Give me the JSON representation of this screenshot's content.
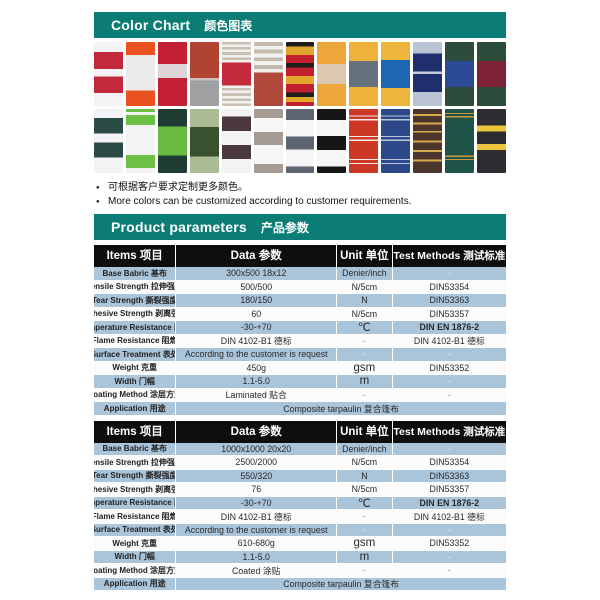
{
  "colors": {
    "accent_teal": "#0b7d75",
    "table_header_bg": "#0e0e0e",
    "row_alt_blue": "#aac4da",
    "row_plain": "#fbfbfb"
  },
  "banners": {
    "color_chart": {
      "en": "Color Chart",
      "zh": "颜色图表"
    },
    "product_parameters": {
      "en": "Product parameters",
      "zh": "产品参数"
    }
  },
  "notes": [
    "可根据客户要求定制更多颜色。",
    "More colors can be customized according to customer requirements."
  ],
  "swatches": {
    "rows": [
      [
        [
          [
            "#f3f3f5",
            16
          ],
          [
            "#c22a3b",
            26
          ],
          [
            "#f3f3f5",
            12
          ],
          [
            "#c22a3b",
            26
          ],
          [
            "#f3f3f5",
            20
          ]
        ],
        [
          [
            "#e9531f",
            20
          ],
          [
            "#ebebed",
            56
          ],
          [
            "#e9531f",
            24
          ]
        ],
        [
          [
            "#c22133",
            34
          ],
          [
            "#dcd4d7",
            22
          ],
          [
            "#c22133",
            44
          ]
        ],
        [
          [
            "#b04430",
            56
          ],
          [
            "#cfc0c0",
            4
          ],
          [
            "#9fa0a2",
            40
          ]
        ],
        [
          [
            "#c9c0b4",
            4
          ],
          [
            "#f2f1ee",
            4
          ],
          [
            "#c9c0b4",
            4
          ],
          [
            "#f2f1ee",
            4
          ],
          [
            "#c9c0b4",
            4
          ],
          [
            "#f2f1ee",
            4
          ],
          [
            "#c9c0b4",
            4
          ],
          [
            "#f2f1ee",
            4
          ],
          [
            "#c52b3d",
            36
          ],
          [
            "#f2f1ee",
            4
          ],
          [
            "#c9c0b4",
            4
          ],
          [
            "#f2f1ee",
            4
          ],
          [
            "#c9c0b4",
            4
          ],
          [
            "#f2f1ee",
            4
          ],
          [
            "#c9c0b4",
            4
          ],
          [
            "#f2f1ee",
            4
          ],
          [
            "#c9c0b4",
            4
          ]
        ],
        [
          [
            "#c4bab0",
            6
          ],
          [
            "#f2f1ee",
            6
          ],
          [
            "#c4bab0",
            6
          ],
          [
            "#f2f1ee",
            6
          ],
          [
            "#c4bab0",
            6
          ],
          [
            "#f2f1ee",
            6
          ],
          [
            "#c4bab0",
            6
          ],
          [
            "#f2f1ee",
            6
          ],
          [
            "#b1483c",
            52
          ]
        ],
        [
          [
            "#1d1d1d",
            7
          ],
          [
            "#e2a62c",
            13
          ],
          [
            "#c2202e",
            13
          ],
          [
            "#1d1d1d",
            7
          ],
          [
            "#c2202e",
            13
          ],
          [
            "#e2a62c",
            13
          ],
          [
            "#c2202e",
            13
          ],
          [
            "#1d1d1d",
            7
          ],
          [
            "#e2a62c",
            8
          ],
          [
            "#c2202e",
            6
          ]
        ],
        [
          [
            "#eda63c",
            34
          ],
          [
            "#dcc8b0",
            32
          ],
          [
            "#eda63c",
            34
          ]
        ],
        [
          [
            "#ecb23c",
            30
          ],
          [
            "#67727f",
            40
          ],
          [
            "#ecb23c",
            30
          ]
        ],
        [
          [
            "#eeb53e",
            28
          ],
          [
            "#1c66b2",
            44
          ],
          [
            "#eeb53e",
            28
          ]
        ],
        [
          [
            "#b9c3d2",
            18
          ],
          [
            "#1f2f6e",
            28
          ],
          [
            "#c5cdd9",
            4
          ],
          [
            "#1f2f6e",
            28
          ],
          [
            "#b9c3d2",
            22
          ]
        ],
        [
          [
            "#2e4c3c",
            30
          ],
          [
            "#2c4b97",
            40
          ],
          [
            "#2e4c3c",
            30
          ]
        ],
        [
          [
            "#2e4c3c",
            30
          ],
          [
            "#7c2136",
            40
          ],
          [
            "#2e4c3c",
            30
          ]
        ]
      ],
      [
        [
          [
            "#f3f3f5",
            14
          ],
          [
            "#2c4b45",
            24
          ],
          [
            "#f3f3f5",
            14
          ],
          [
            "#2c4b45",
            24
          ],
          [
            "#f3f3f5",
            24
          ]
        ],
        [
          [
            "#6cc043",
            5
          ],
          [
            "#f3f3f5",
            4
          ],
          [
            "#6cc043",
            16
          ],
          [
            "#f3f3f5",
            47
          ],
          [
            "#6cc043",
            20
          ],
          [
            "#f3f3f5",
            8
          ]
        ],
        [
          [
            "#1e3c33",
            27
          ],
          [
            "#69bb41",
            46
          ],
          [
            "#1e3c33",
            27
          ]
        ],
        [
          [
            "#abbc94",
            28
          ],
          [
            "#3a512f",
            46
          ],
          [
            "#abbc94",
            26
          ]
        ],
        [
          [
            "#f3f3f5",
            12
          ],
          [
            "#4a383c",
            22
          ],
          [
            "#f3f3f5",
            22
          ],
          [
            "#4a383c",
            22
          ],
          [
            "#f3f3f5",
            22
          ]
        ],
        [
          [
            "#a59b95",
            14
          ],
          [
            "#f6f6f6",
            22
          ],
          [
            "#a59b95",
            20
          ],
          [
            "#f6f6f6",
            30
          ],
          [
            "#a59b95",
            14
          ]
        ],
        [
          [
            "#5e6470",
            17
          ],
          [
            "#f6f6f6",
            26
          ],
          [
            "#5e6470",
            20
          ],
          [
            "#f6f6f6",
            27
          ],
          [
            "#5e6470",
            10
          ]
        ],
        [
          [
            "#161616",
            17
          ],
          [
            "#f6f6f6",
            25
          ],
          [
            "#161616",
            22
          ],
          [
            "#f6f6f6",
            26
          ],
          [
            "#161616",
            10
          ]
        ],
        [
          [
            "#cd3826",
            10
          ],
          [
            "#f4e9e6",
            2
          ],
          [
            "#cd3826",
            4
          ],
          [
            "#f4e9e6",
            2
          ],
          [
            "#cd3826",
            24
          ],
          [
            "#f4e9e6",
            2
          ],
          [
            "#cd3826",
            4
          ],
          [
            "#f4e9e6",
            2
          ],
          [
            "#cd3826",
            28
          ],
          [
            "#f4e9e6",
            2
          ],
          [
            "#cd3826",
            4
          ],
          [
            "#f4e9e6",
            2
          ],
          [
            "#cd3826",
            14
          ]
        ],
        [
          [
            "#2c4889",
            10
          ],
          [
            "#bac7dd",
            2
          ],
          [
            "#2c4889",
            4
          ],
          [
            "#bac7dd",
            2
          ],
          [
            "#2c4889",
            24
          ],
          [
            "#bac7dd",
            2
          ],
          [
            "#2c4889",
            4
          ],
          [
            "#bac7dd",
            2
          ],
          [
            "#2c4889",
            28
          ],
          [
            "#bac7dd",
            2
          ],
          [
            "#2c4889",
            4
          ],
          [
            "#bac7dd",
            2
          ],
          [
            "#2c4889",
            14
          ]
        ],
        [
          [
            "#4c352c",
            8
          ],
          [
            "#d3a94e",
            3
          ],
          [
            "#4c352c",
            10
          ],
          [
            "#d3a94e",
            3
          ],
          [
            "#4c352c",
            10
          ],
          [
            "#d3a94e",
            3
          ],
          [
            "#4c352c",
            12
          ],
          [
            "#d3a94e",
            3
          ],
          [
            "#4c352c",
            12
          ],
          [
            "#d3a94e",
            3
          ],
          [
            "#4c352c",
            12
          ],
          [
            "#d3a94e",
            3
          ],
          [
            "#4c352c",
            18
          ]
        ],
        [
          [
            "#1e5347",
            6
          ],
          [
            "#c9973d",
            2
          ],
          [
            "#1e5347",
            3
          ],
          [
            "#c9973d",
            2
          ],
          [
            "#1e5347",
            60
          ],
          [
            "#c9973d",
            2
          ],
          [
            "#1e5347",
            3
          ],
          [
            "#c9973d",
            2
          ],
          [
            "#1e5347",
            20
          ]
        ],
        [
          [
            "#2c2c31",
            26
          ],
          [
            "#ecc63d",
            9
          ],
          [
            "#2c2c31",
            20
          ],
          [
            "#ecc63d",
            9
          ],
          [
            "#2c2c31",
            36
          ]
        ]
      ]
    ]
  },
  "tables": [
    {
      "headers": [
        "Items 项目",
        "Data 参数",
        "Unit 单位",
        "Test Methods 测试标准"
      ],
      "rows": [
        {
          "item": "Base Babric 基布",
          "data": "300x500  18x12",
          "unit": "Denier/inch",
          "test": "-"
        },
        {
          "item": "Tensile Strength 拉伸强度",
          "data": "500/500",
          "unit": "N/5cm",
          "test": "DIN53354"
        },
        {
          "item": "Tear Strength 撕裂强度",
          "data": "180/150",
          "unit": "N",
          "test": "DIN53363"
        },
        {
          "item": "Adhesive Strength 剥离强度",
          "data": "60",
          "unit": "N/5cm",
          "test": "DIN53357"
        },
        {
          "item": "Temperature Resistance 耐温",
          "data": "-30-+70",
          "unit": "℃",
          "test": "DIN EN 1876-2",
          "bold": true
        },
        {
          "item": "Flame Resistance 阻燃",
          "data": "DIN 4102-B1 德标",
          "unit": "-",
          "test": "DIN 4102-B1 德标"
        },
        {
          "item": "Surface Treatment 表处",
          "data": "According to the customer is request",
          "unit": "-",
          "test": "-"
        },
        {
          "item": "Weight 克重",
          "data": "450g",
          "unit": "gsm",
          "test": "DIN53352"
        },
        {
          "item": "Width 门幅",
          "data": "1.1-5.0",
          "unit": "m",
          "test": "-"
        },
        {
          "item": "Coating Method 涂层方式",
          "data": "Laminated 贴合",
          "unit": "-",
          "test": "-"
        },
        {
          "item": "Application 用途",
          "span": "Composite tarpaulin 复合篷布"
        }
      ]
    },
    {
      "headers": [
        "Items 项目",
        "Data 参数",
        "Unit 单位",
        "Test Methods 测试标准"
      ],
      "rows": [
        {
          "item": "Base Babric 基布",
          "data": "1000x1000  20x20",
          "unit": "Denier/inch",
          "test": "-"
        },
        {
          "item": "Tensile Strength 拉伸强度",
          "data": "2500/2000",
          "unit": "N/5cm",
          "test": "DIN53354"
        },
        {
          "item": "Tear Strength 撕裂强度",
          "data": "550/320",
          "unit": "N",
          "test": "DIN53363"
        },
        {
          "item": "Adhesive Strength 剥离强度",
          "data": "76",
          "unit": "N/5cm",
          "test": "DIN53357"
        },
        {
          "item": "Temperature Resistance 耐温",
          "data": "-30-+70",
          "unit": "℃",
          "test": "DIN EN 1876-2",
          "bold": true
        },
        {
          "item": "Flame Resistance 阻燃",
          "data": "DIN 4102-B1 德标",
          "unit": "-",
          "test": "DIN 4102-B1 德标"
        },
        {
          "item": "Surface Treatment 表处",
          "data": "According to the customer is request",
          "unit": "-",
          "test": "-"
        },
        {
          "item": "Weight 克重",
          "data": "610-680g",
          "unit": "gsm",
          "test": "DIN53352"
        },
        {
          "item": "Width 门幅",
          "data": "1.1-5.0",
          "unit": "m",
          "test": "-"
        },
        {
          "item": "Coating Method 涂层方式",
          "data": "Coated 涂贴",
          "unit": "-",
          "test": "-"
        },
        {
          "item": "Application 用途",
          "span": "Composite tarpaulin 复合篷布"
        }
      ]
    }
  ]
}
